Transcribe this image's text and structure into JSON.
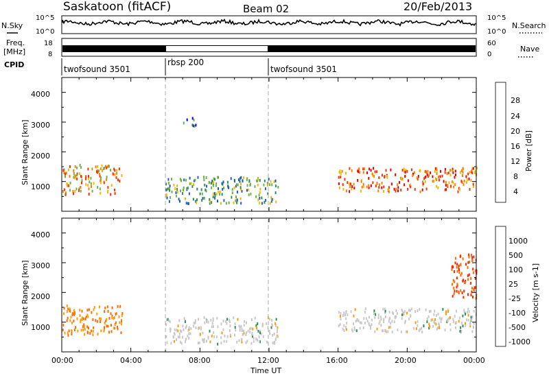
{
  "header": {
    "station": "Saskatoon (fitACF)",
    "beam": "Beam 02",
    "date": "20/Feb/2013"
  },
  "noise_panel": {
    "left_label": "N.Sky",
    "right_label": "N.Search",
    "left_ticks": [
      "10^5",
      "10^0"
    ],
    "right_ticks": [
      "10^5",
      "10^0"
    ]
  },
  "freq_panel": {
    "left_label_1": "Freq.",
    "left_label_2": "[MHz]",
    "right_label": "Nave",
    "left_ticks": [
      "18",
      "8"
    ],
    "right_ticks": [
      "60",
      "0"
    ]
  },
  "cpid": {
    "label": "CPID",
    "segments": [
      {
        "label": "twofsound 3501",
        "start": 0,
        "end": 6
      },
      {
        "label": "rbsp 200",
        "start": 6,
        "end": 12
      },
      {
        "label": "twofsound 3501",
        "start": 12,
        "end": 24
      }
    ]
  },
  "x_axis": {
    "label": "Time UT",
    "ticks": [
      "00:00",
      "04:00",
      "08:00",
      "12:00",
      "16:00",
      "20:00",
      "00:00"
    ],
    "range_hours": [
      0,
      24
    ]
  },
  "power_panel": {
    "ylabel": "Slant Range [km]",
    "yticks": [
      "4000",
      "3000",
      "2000",
      "1000"
    ],
    "colorbar_label": "Power [dB]",
    "colorbar_ticks": [
      "28",
      "24",
      "20",
      "16",
      "12",
      "8",
      "4"
    ],
    "colors": [
      "#0000ff",
      "#1e5fb4",
      "#2e8b57",
      "#6ab04c",
      "#f2b705",
      "#ff7f00",
      "#ff3000",
      "#e60000"
    ]
  },
  "velocity_panel": {
    "ylabel": "Slant Range [km]",
    "yticks": [
      "4000",
      "3000",
      "2000",
      "1000"
    ],
    "colorbar_label": "Velocity [m s-1]",
    "colorbar_ticks": [
      "1000",
      "500",
      "100",
      "25",
      "-25",
      "-100",
      "-500",
      "-1000"
    ],
    "colors": [
      "#1f3bb3",
      "#2f6fc9",
      "#2e8b57",
      "#6ccb3c",
      "#c8c8c8",
      "#c8c8c8",
      "#ff9a00",
      "#ff6a00",
      "#ff2200"
    ]
  },
  "chart_data": [
    {
      "type": "heatmap",
      "title": "Power",
      "x_range_hours": [
        0,
        24
      ],
      "y_range_km": [
        0,
        4500
      ],
      "echo_regions": [
        {
          "t_start": 0.0,
          "t_end": 3.5,
          "r_start": 600,
          "r_end": 1600,
          "value_db": 20
        },
        {
          "t_start": 6.0,
          "t_end": 12.5,
          "r_start": 300,
          "r_end": 1200,
          "value_db": 12
        },
        {
          "t_start": 16.0,
          "t_end": 24.0,
          "r_start": 700,
          "r_end": 1500,
          "value_db": 24
        },
        {
          "t_start": 7.0,
          "t_end": 7.8,
          "r_start": 2900,
          "r_end": 3200,
          "value_db": 6
        }
      ]
    },
    {
      "type": "heatmap",
      "title": "Velocity",
      "x_range_hours": [
        0,
        24
      ],
      "y_range_km": [
        0,
        4500
      ],
      "echo_regions": [
        {
          "t_start": 0.0,
          "t_end": 3.5,
          "r_start": 600,
          "r_end": 1600,
          "value_ms": -100
        },
        {
          "t_start": 6.0,
          "t_end": 12.5,
          "r_start": 300,
          "r_end": 1200,
          "value_ms": 0
        },
        {
          "t_start": 16.0,
          "t_end": 24.0,
          "r_start": 700,
          "r_end": 1500,
          "value_ms": 0
        },
        {
          "t_start": 22.5,
          "t_end": 24.0,
          "r_start": 1800,
          "r_end": 3400,
          "value_ms": -500
        }
      ]
    }
  ]
}
